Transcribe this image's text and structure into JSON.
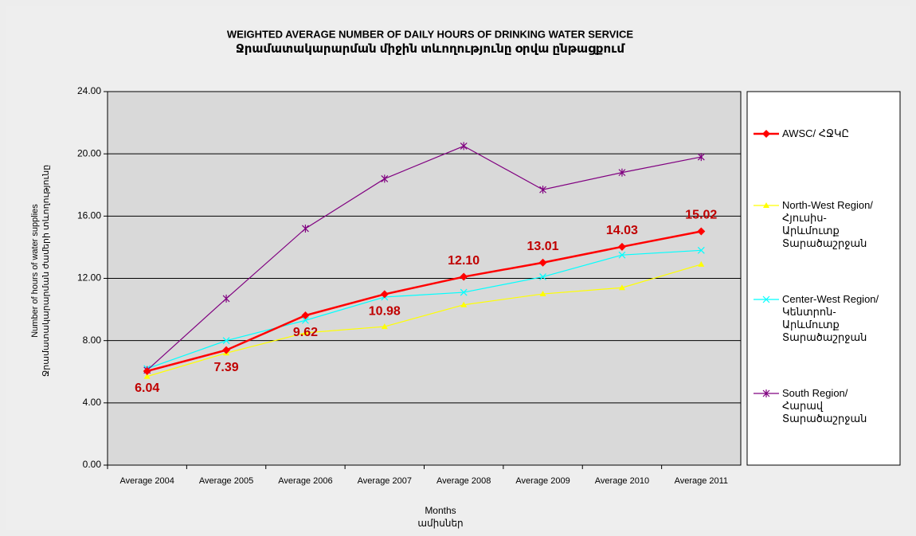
{
  "chart_data": {
    "type": "line",
    "title": "WEIGHTED AVERAGE NUMBER OF DAILY HOURS OF DRINKING  WATER SERVICE",
    "subtitle": "Ջրամատակարարման միջին տևողությունը օրվա ընթացքում",
    "y_label": "Number of hours of water supplies",
    "y_label_2": "Ջրամատակարարման ժամերի տևողությունը",
    "x_label": "Months",
    "x_label_2": "ամիսներ",
    "categories": [
      "Average 2004",
      "Average 2005",
      "Average 2006",
      "Average 2007",
      "Average 2008",
      "Average 2009",
      "Average 2010",
      "Average 2011"
    ],
    "ylim": [
      0,
      24
    ],
    "yticks": [
      {
        "value": 0,
        "label": "0.00"
      },
      {
        "value": 4,
        "label": "4.00"
      },
      {
        "value": 8,
        "label": "8.00"
      },
      {
        "value": 12,
        "label": "12.00"
      },
      {
        "value": 16,
        "label": "16.00"
      },
      {
        "value": 20,
        "label": "20.00"
      },
      {
        "value": 24,
        "label": "24.00"
      }
    ],
    "grid": true,
    "legend": "right",
    "series": [
      {
        "name": "AWSC/ ՀՋԿԸ",
        "color": "#ff0000",
        "marker": "diamond",
        "values": [
          6.04,
          7.39,
          9.62,
          10.98,
          12.1,
          13.01,
          14.03,
          15.02
        ],
        "value_labels": [
          "6.04",
          "7.39",
          "9.62",
          "10.98",
          "12.10",
          "13.01",
          "14.03",
          "15.02"
        ]
      },
      {
        "name": "North-West Region/ Հյուսիս-Արևմուտք Տարածաշրջան",
        "color": "#ffff00",
        "marker": "triangle",
        "values": [
          5.7,
          7.2,
          8.5,
          8.9,
          10.3,
          11.0,
          11.4,
          12.9
        ]
      },
      {
        "name": "Center-West Region/ Կենտրոն-Արևմուտք Տարածաշրջան",
        "color": "#00ffff",
        "marker": "x",
        "values": [
          6.2,
          8.0,
          9.3,
          10.8,
          11.1,
          12.1,
          13.5,
          13.8
        ]
      },
      {
        "name": "South Region/ Հարավ Տարածաշրջան",
        "color": "#800080",
        "marker": "star",
        "values": [
          6.1,
          10.7,
          15.2,
          18.4,
          20.5,
          17.7,
          18.8,
          19.8
        ]
      }
    ]
  }
}
